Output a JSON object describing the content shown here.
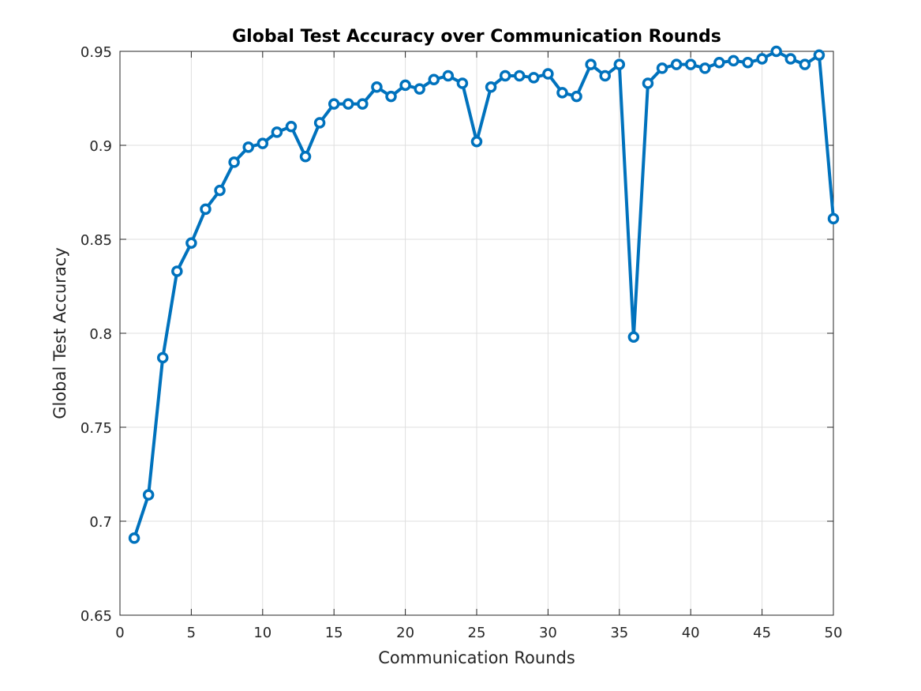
{
  "chart_data": {
    "type": "line",
    "title": "Global Test Accuracy over Communication Rounds",
    "xlabel": "Communication Rounds",
    "ylabel": "Global Test Accuracy",
    "xlim": [
      0,
      50
    ],
    "ylim": [
      0.65,
      0.95
    ],
    "xticks": [
      0,
      5,
      10,
      15,
      20,
      25,
      30,
      35,
      40,
      45,
      50
    ],
    "yticks": [
      0.65,
      0.7,
      0.75,
      0.8,
      0.85,
      0.9,
      0.95
    ],
    "ytick_labels": [
      "0.65",
      "0.7",
      "0.75",
      "0.8",
      "0.85",
      "0.9",
      "0.95"
    ],
    "grid": true,
    "legend": "none",
    "marker": "circle",
    "series": [
      {
        "color": "#0072bd",
        "x": [
          1,
          2,
          3,
          4,
          5,
          6,
          7,
          8,
          9,
          10,
          11,
          12,
          13,
          14,
          15,
          16,
          17,
          18,
          19,
          20,
          21,
          22,
          23,
          24,
          25,
          26,
          27,
          28,
          29,
          30,
          31,
          32,
          33,
          34,
          35,
          36,
          37,
          38,
          39,
          40,
          41,
          42,
          43,
          44,
          45,
          46,
          47,
          48,
          49,
          50
        ],
        "y": [
          0.691,
          0.714,
          0.787,
          0.833,
          0.848,
          0.866,
          0.876,
          0.891,
          0.899,
          0.901,
          0.907,
          0.91,
          0.894,
          0.912,
          0.922,
          0.922,
          0.922,
          0.931,
          0.926,
          0.932,
          0.93,
          0.935,
          0.937,
          0.933,
          0.902,
          0.931,
          0.937,
          0.937,
          0.936,
          0.938,
          0.928,
          0.926,
          0.943,
          0.937,
          0.943,
          0.798,
          0.933,
          0.941,
          0.943,
          0.943,
          0.941,
          0.944,
          0.945,
          0.944,
          0.946,
          0.95,
          0.946,
          0.943,
          0.948,
          0.861
        ]
      }
    ]
  }
}
